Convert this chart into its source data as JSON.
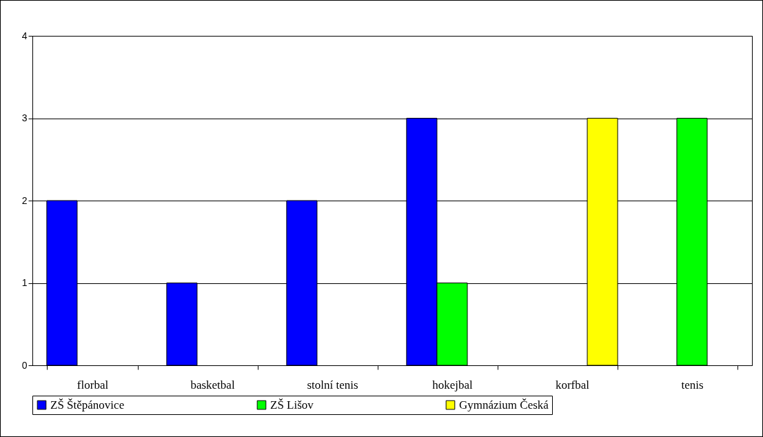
{
  "chart_data": {
    "type": "bar",
    "categories": [
      "florbal",
      "basketbal",
      "stolní tenis",
      "hokejbal",
      "korfbal",
      "tenis"
    ],
    "series": [
      {
        "name": "ZŠ Štěpánovice",
        "color": "#0000ff",
        "values": [
          2,
          1,
          2,
          3,
          null,
          null
        ]
      },
      {
        "name": "ZŠ Lišov",
        "color": "#00ff00",
        "values": [
          null,
          null,
          null,
          1,
          null,
          3
        ]
      },
      {
        "name": "Gymnázium Česká",
        "color": "#ffff00",
        "values": [
          null,
          null,
          null,
          null,
          3,
          null
        ]
      }
    ],
    "ylim": [
      0,
      4
    ],
    "yticks": [
      0,
      1,
      2,
      3,
      4
    ],
    "grid": "y",
    "legend": "bottom"
  }
}
